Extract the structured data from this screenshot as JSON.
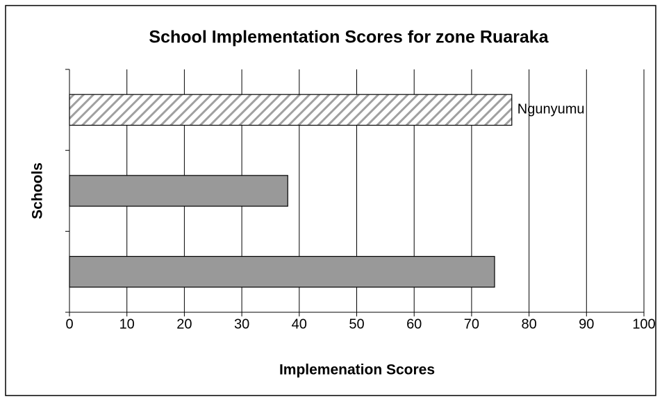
{
  "chart_data": {
    "type": "hbar",
    "title": "School Implementation Scores for zone Ruaraka",
    "xlabel": "Implemenation Scores",
    "ylabel": "Schools",
    "categories": [
      "Ngunyumu",
      null,
      null
    ],
    "values": [
      77,
      38,
      74
    ],
    "colors": [
      "#ffffff",
      "#999999",
      "#999999"
    ],
    "hatched": [
      true,
      false,
      false
    ],
    "xlim": [
      0,
      100
    ],
    "xticks": [
      0,
      10,
      20,
      30,
      40,
      50,
      60,
      70,
      80,
      90,
      100
    ],
    "grid": true
  }
}
